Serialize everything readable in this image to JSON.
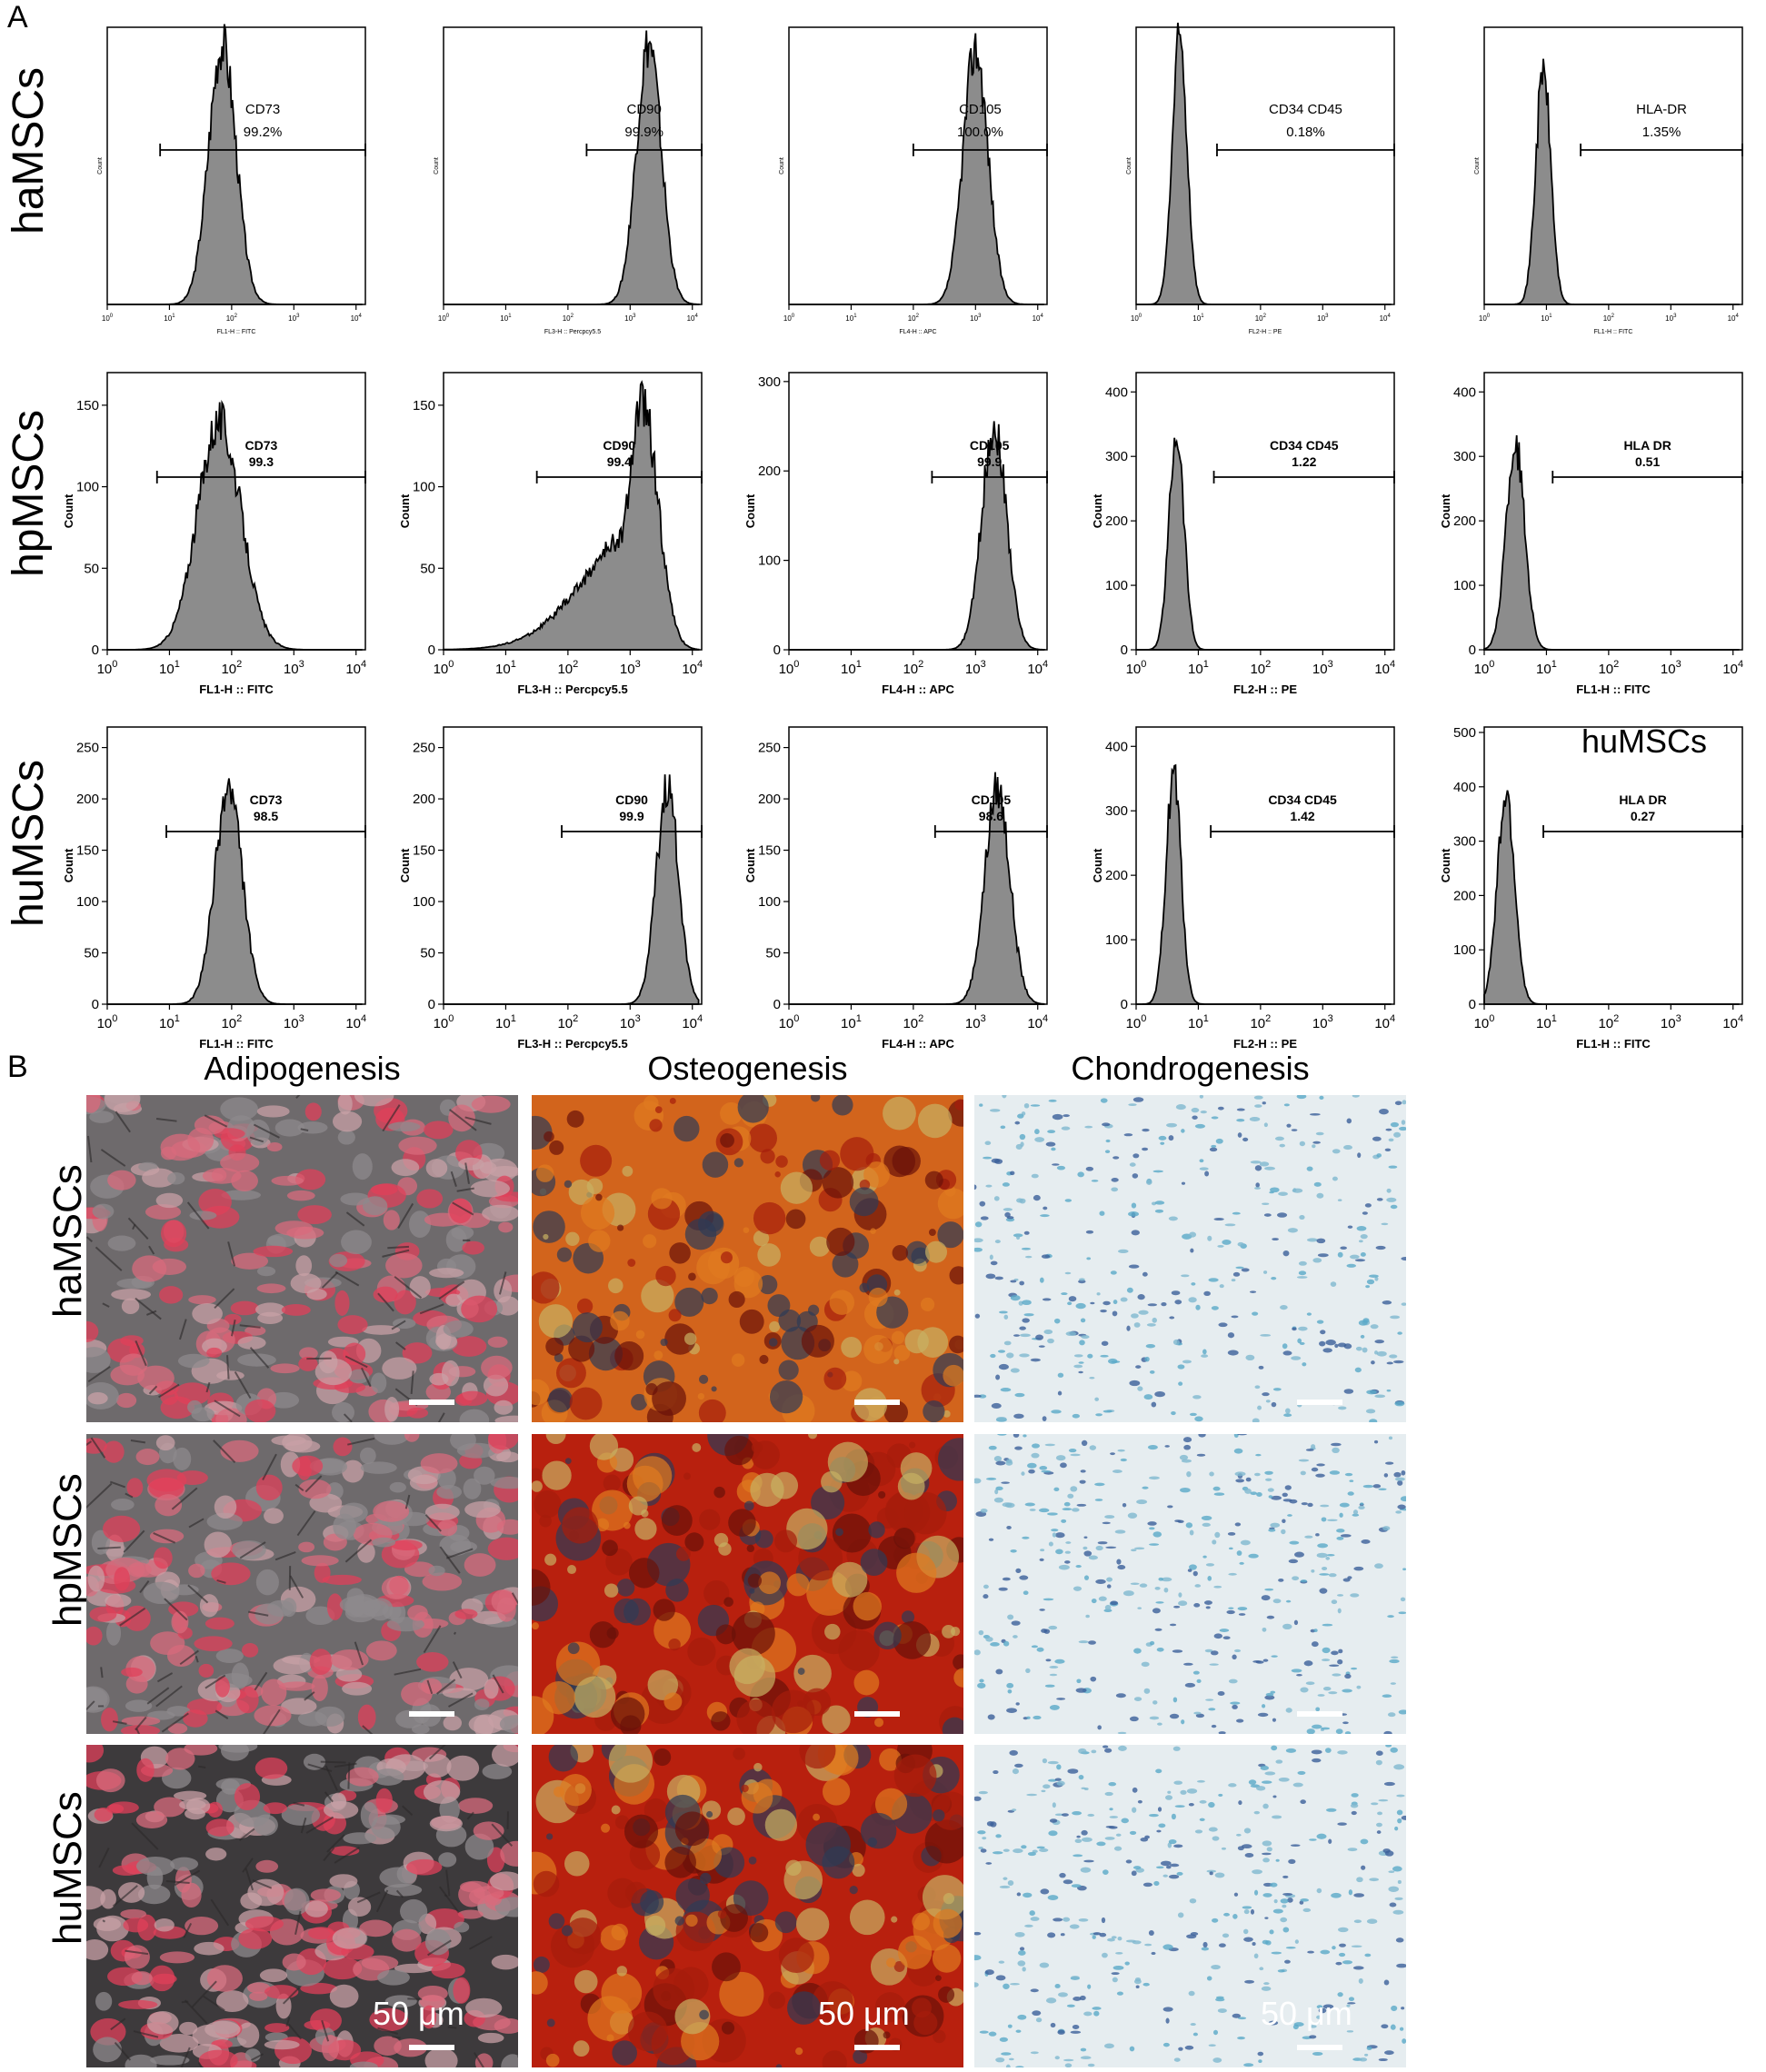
{
  "panels": {
    "a": "A",
    "b": "B"
  },
  "rows": [
    "haMSCs",
    "hpMSCs",
    "huMSCs"
  ],
  "inset_title": "huMSCs",
  "columns_b": [
    "Adipogenesis",
    "Osteogenesis",
    "Chondrogenesis"
  ],
  "scale_label": "50 μm",
  "colors": {
    "hist_fill": "#8c8c8c",
    "hist_stroke": "#000000",
    "adipo_bg": "#6e6a6c",
    "osteo_bg": "#c53a12",
    "chondro_bg": "#e6edf0"
  },
  "chart_data": [
    {
      "type": "area",
      "row": "haMSCs",
      "marker": "CD73",
      "value": "99.2%",
      "xlabel": "FL1-H :: FITC",
      "ylabel": "Count",
      "ymax": 500,
      "yticks": [],
      "peak_log": 1.85,
      "width": 0.22,
      "peak": 470
    },
    {
      "type": "area",
      "row": "haMSCs",
      "marker": "CD90",
      "value": "99.9%",
      "xlabel": "FL3-H :: Percpcy5.5",
      "ylabel": "Count",
      "ymax": 500,
      "yticks": [],
      "peak_log": 3.3,
      "width": 0.2,
      "peak": 470
    },
    {
      "type": "area",
      "row": "haMSCs",
      "marker": "CD105",
      "value": "100.0%",
      "xlabel": "FL4-H :: APC",
      "ylabel": "Count",
      "ymax": 650,
      "yticks": [],
      "peak_log": 3.0,
      "width": 0.2,
      "peak": 600
    },
    {
      "type": "area",
      "row": "haMSCs",
      "marker": "CD34 CD45",
      "value": "0.18%",
      "xlabel": "FL2-H :: PE",
      "ylabel": "Count",
      "ymax": 650,
      "yticks": [],
      "peak_log": 0.7,
      "width": 0.12,
      "peak": 620
    },
    {
      "type": "area",
      "row": "haMSCs",
      "marker": "HLA-DR",
      "value": "1.35%",
      "xlabel": "FL1-H :: FITC",
      "ylabel": "Count",
      "ymax": 650,
      "yticks": [],
      "peak_log": 0.95,
      "width": 0.12,
      "peak": 550
    },
    {
      "type": "area",
      "row": "hpMSCs",
      "marker": "CD73",
      "value": "99.3",
      "xlabel": "FL1-H :: FITC",
      "ylabel": "Count",
      "ymax": 170,
      "yticks": [
        0,
        50,
        100,
        150
      ],
      "peak_log": 1.8,
      "width": 0.35,
      "peak": 140
    },
    {
      "type": "area",
      "row": "hpMSCs",
      "marker": "CD90",
      "value": "99.4",
      "xlabel": "FL3-H :: Percpcy5.5",
      "ylabel": "Count",
      "ymax": 170,
      "yticks": [
        0,
        50,
        100,
        150
      ],
      "peak_log": 3.2,
      "width": 0.25,
      "peak": 150,
      "tail": true
    },
    {
      "type": "area",
      "row": "hpMSCs",
      "marker": "CD105",
      "value": "99.9",
      "xlabel": "FL4-H :: APC",
      "ylabel": "Count",
      "ymax": 310,
      "yticks": [
        0,
        100,
        200,
        300
      ],
      "peak_log": 3.3,
      "width": 0.2,
      "peak": 250
    },
    {
      "type": "area",
      "row": "hpMSCs",
      "marker": "CD34 CD45",
      "value": "1.22",
      "xlabel": "FL2-H :: PE",
      "ylabel": "Count",
      "ymax": 430,
      "yticks": [
        0,
        100,
        200,
        300,
        400
      ],
      "peak_log": 0.65,
      "width": 0.12,
      "peak": 340
    },
    {
      "type": "area",
      "row": "hpMSCs",
      "marker": "HLA DR",
      "value": "0.51",
      "xlabel": "FL1-H :: FITC",
      "ylabel": "Count",
      "ymax": 430,
      "yticks": [
        0,
        100,
        200,
        300,
        400
      ],
      "peak_log": 0.5,
      "width": 0.15,
      "peak": 320
    },
    {
      "type": "area",
      "row": "huMSCs",
      "marker": "CD73",
      "value": "98.5",
      "xlabel": "FL1-H :: FITC",
      "ylabel": "Count",
      "ymax": 270,
      "yticks": [
        0,
        50,
        100,
        150,
        200,
        250
      ],
      "peak_log": 1.95,
      "width": 0.22,
      "peak": 210
    },
    {
      "type": "area",
      "row": "huMSCs",
      "marker": "CD90",
      "value": "99.9",
      "xlabel": "FL3-H :: Percpcy5.5",
      "ylabel": "Count",
      "ymax": 270,
      "yticks": [
        0,
        50,
        100,
        150,
        200,
        250
      ],
      "peak_log": 3.6,
      "width": 0.18,
      "peak": 210
    },
    {
      "type": "area",
      "row": "huMSCs",
      "marker": "CD105",
      "value": "98.6",
      "xlabel": "FL4-H :: APC",
      "ylabel": "Count",
      "ymax": 270,
      "yticks": [
        0,
        50,
        100,
        150,
        200,
        250
      ],
      "peak_log": 3.35,
      "width": 0.2,
      "peak": 210
    },
    {
      "type": "area",
      "row": "huMSCs",
      "marker": "CD34 CD45",
      "value": "1.42",
      "xlabel": "FL2-H :: PE",
      "ylabel": "Count",
      "ymax": 430,
      "yticks": [
        0,
        100,
        200,
        300,
        400
      ],
      "peak_log": 0.6,
      "width": 0.12,
      "peak": 360
    },
    {
      "type": "area",
      "row": "huMSCs",
      "marker": "HLA DR",
      "value": "0.27",
      "xlabel": "FL1-H :: FITC",
      "ylabel": "Count",
      "ymax": 510,
      "yticks": [
        0,
        100,
        200,
        300,
        400,
        500
      ],
      "peak_log": 0.35,
      "width": 0.14,
      "peak": 380
    }
  ]
}
